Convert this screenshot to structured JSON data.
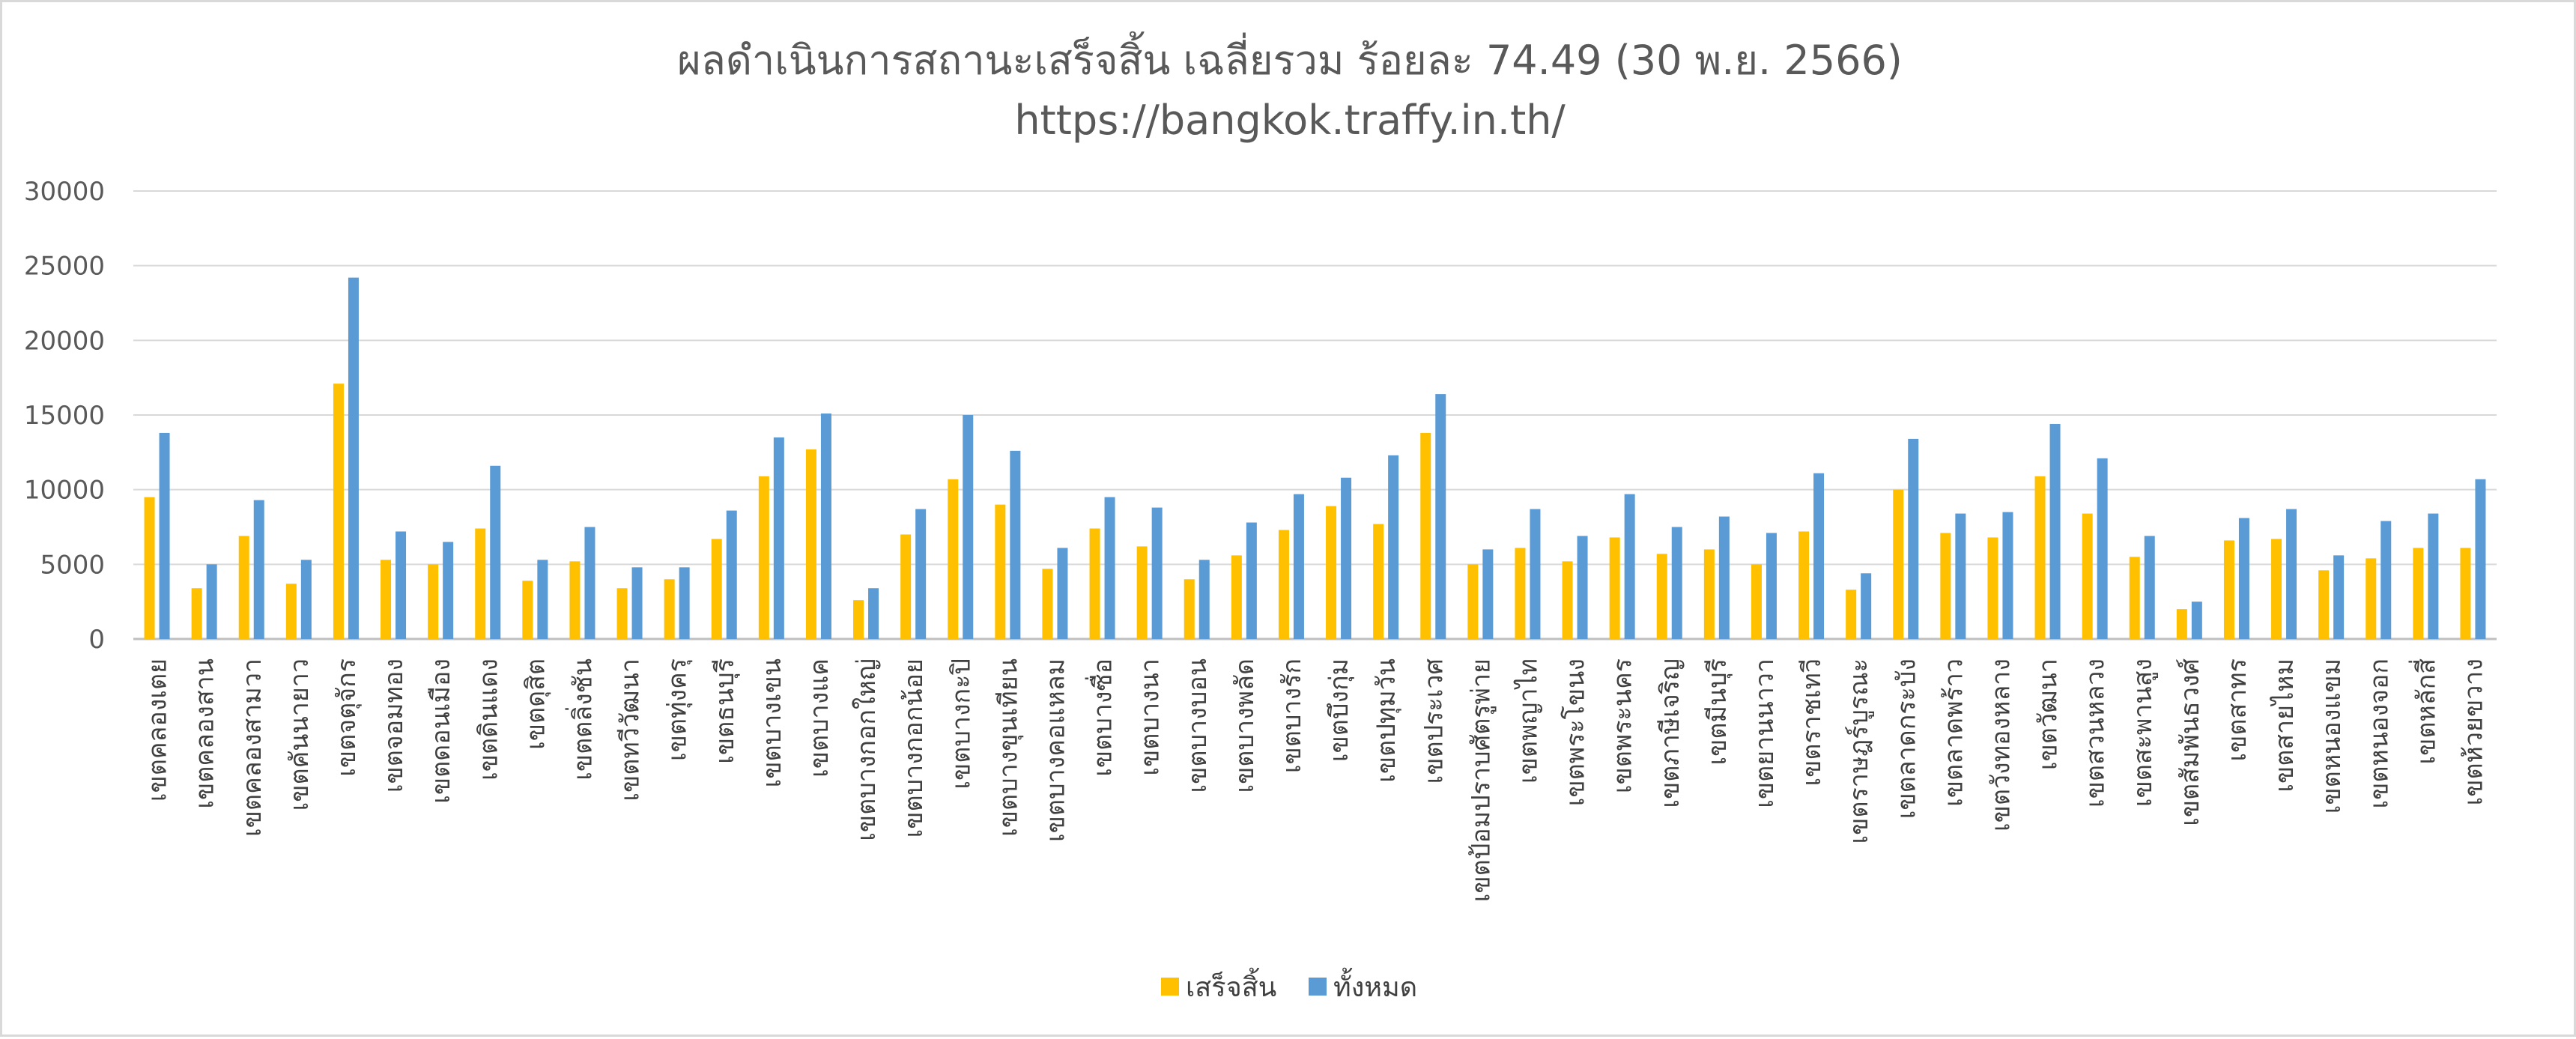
{
  "chart_data": {
    "type": "bar",
    "title": "ผลดำเนินการสถานะเสร็จสิ้น เฉลี่ยรวม ร้อยละ 74.49 (30 พ.ย. 2566)",
    "subtitle": "https://bangkok.traffy.in.th/",
    "xlabel": "",
    "ylabel": "",
    "ylim": [
      0,
      30000
    ],
    "yticks": [
      "0",
      "5000",
      "10000",
      "15000",
      "20000",
      "25000",
      "30000"
    ],
    "grid": true,
    "legend_position": "bottom",
    "categories": [
      "เขตคลองเตย",
      "เขตคลองสาน",
      "เขตคลองสามวา",
      "เขตคันนายาว",
      "เขตจตุจักร",
      "เขตจอมทอง",
      "เขตดอนเมือง",
      "เขตดินแดง",
      "เขตดุสิต",
      "เขตตลิ่งชัน",
      "เขตทวีวัฒนา",
      "เขตทุ่งครุ",
      "เขตธนบุรี",
      "เขตบางเขน",
      "เขตบางแค",
      "เขตบางกอกใหญ่",
      "เขตบางกอกน้อย",
      "เขตบางกะปิ",
      "เขตบางขุนเทียน",
      "เขตบางคอแหลม",
      "เขตบางซื่อ",
      "เขตบางนา",
      "เขตบางบอน",
      "เขตบางพลัด",
      "เขตบางรัก",
      "เขตบึงกุ่ม",
      "เขตปทุมวัน",
      "เขตประเวศ",
      "เขตป้อมปราบศัตรูพ่าย",
      "เขตพญาไท",
      "เขตพระโขนง",
      "เขตพระนคร",
      "เขตภาษีเจริญ",
      "เขตมีนบุรี",
      "เขตยานนาวา",
      "เขตราชเทวี",
      "เขตราษฎร์บูรณะ",
      "เขตลาดกระบัง",
      "เขตลาดพร้าว",
      "เขตวังทองหลาง",
      "เขตวัฒนา",
      "เขตสวนหลวง",
      "เขตสะพานสูง",
      "เขตสัมพันธวงศ์",
      "เขตสาทร",
      "เขตสายไหม",
      "เขตหนองแขม",
      "เขตหนองจอก",
      "เขตหลักสี่",
      "เขตห้วยขวาง"
    ],
    "series": [
      {
        "name": "เสร็จสิ้น",
        "color": "#FFC000",
        "values": [
          9500,
          3400,
          6900,
          3700,
          17100,
          5300,
          5000,
          7400,
          3900,
          5200,
          3400,
          4000,
          6700,
          10900,
          12700,
          2600,
          7000,
          10700,
          9000,
          4700,
          7400,
          6200,
          4000,
          5600,
          7300,
          8900,
          7700,
          13800,
          5000,
          6100,
          5200,
          6800,
          5700,
          6000,
          5000,
          7200,
          3300,
          10000,
          7100,
          6800,
          10900,
          8400,
          5500,
          2000,
          6600,
          6700,
          4600,
          5400,
          6100,
          6100
        ]
      },
      {
        "name": "ทั้งหมด",
        "color": "#5B9BD5",
        "values": [
          13800,
          5000,
          9300,
          5300,
          24200,
          7200,
          6500,
          11600,
          5300,
          7500,
          4800,
          4800,
          8600,
          13500,
          15100,
          3400,
          8700,
          15000,
          12600,
          6100,
          9500,
          8800,
          5300,
          7800,
          9700,
          10800,
          12300,
          16400,
          6000,
          8700,
          6900,
          9700,
          7500,
          8200,
          7100,
          11100,
          4400,
          13400,
          8400,
          8500,
          14400,
          12100,
          6900,
          2500,
          8100,
          8700,
          5600,
          7900,
          8400,
          10700
        ]
      }
    ]
  }
}
